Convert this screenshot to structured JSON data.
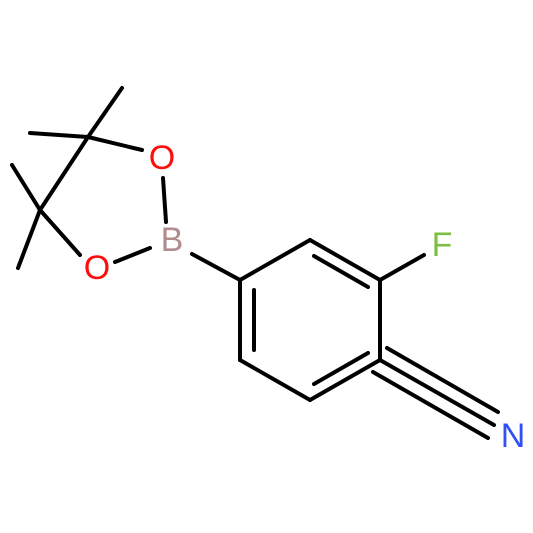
{
  "atoms": [
    {
      "label": "O"
    },
    {
      "label": "O"
    },
    {
      "label": "B"
    },
    {
      "label": "F"
    },
    {
      "label": "N"
    }
  ]
}
